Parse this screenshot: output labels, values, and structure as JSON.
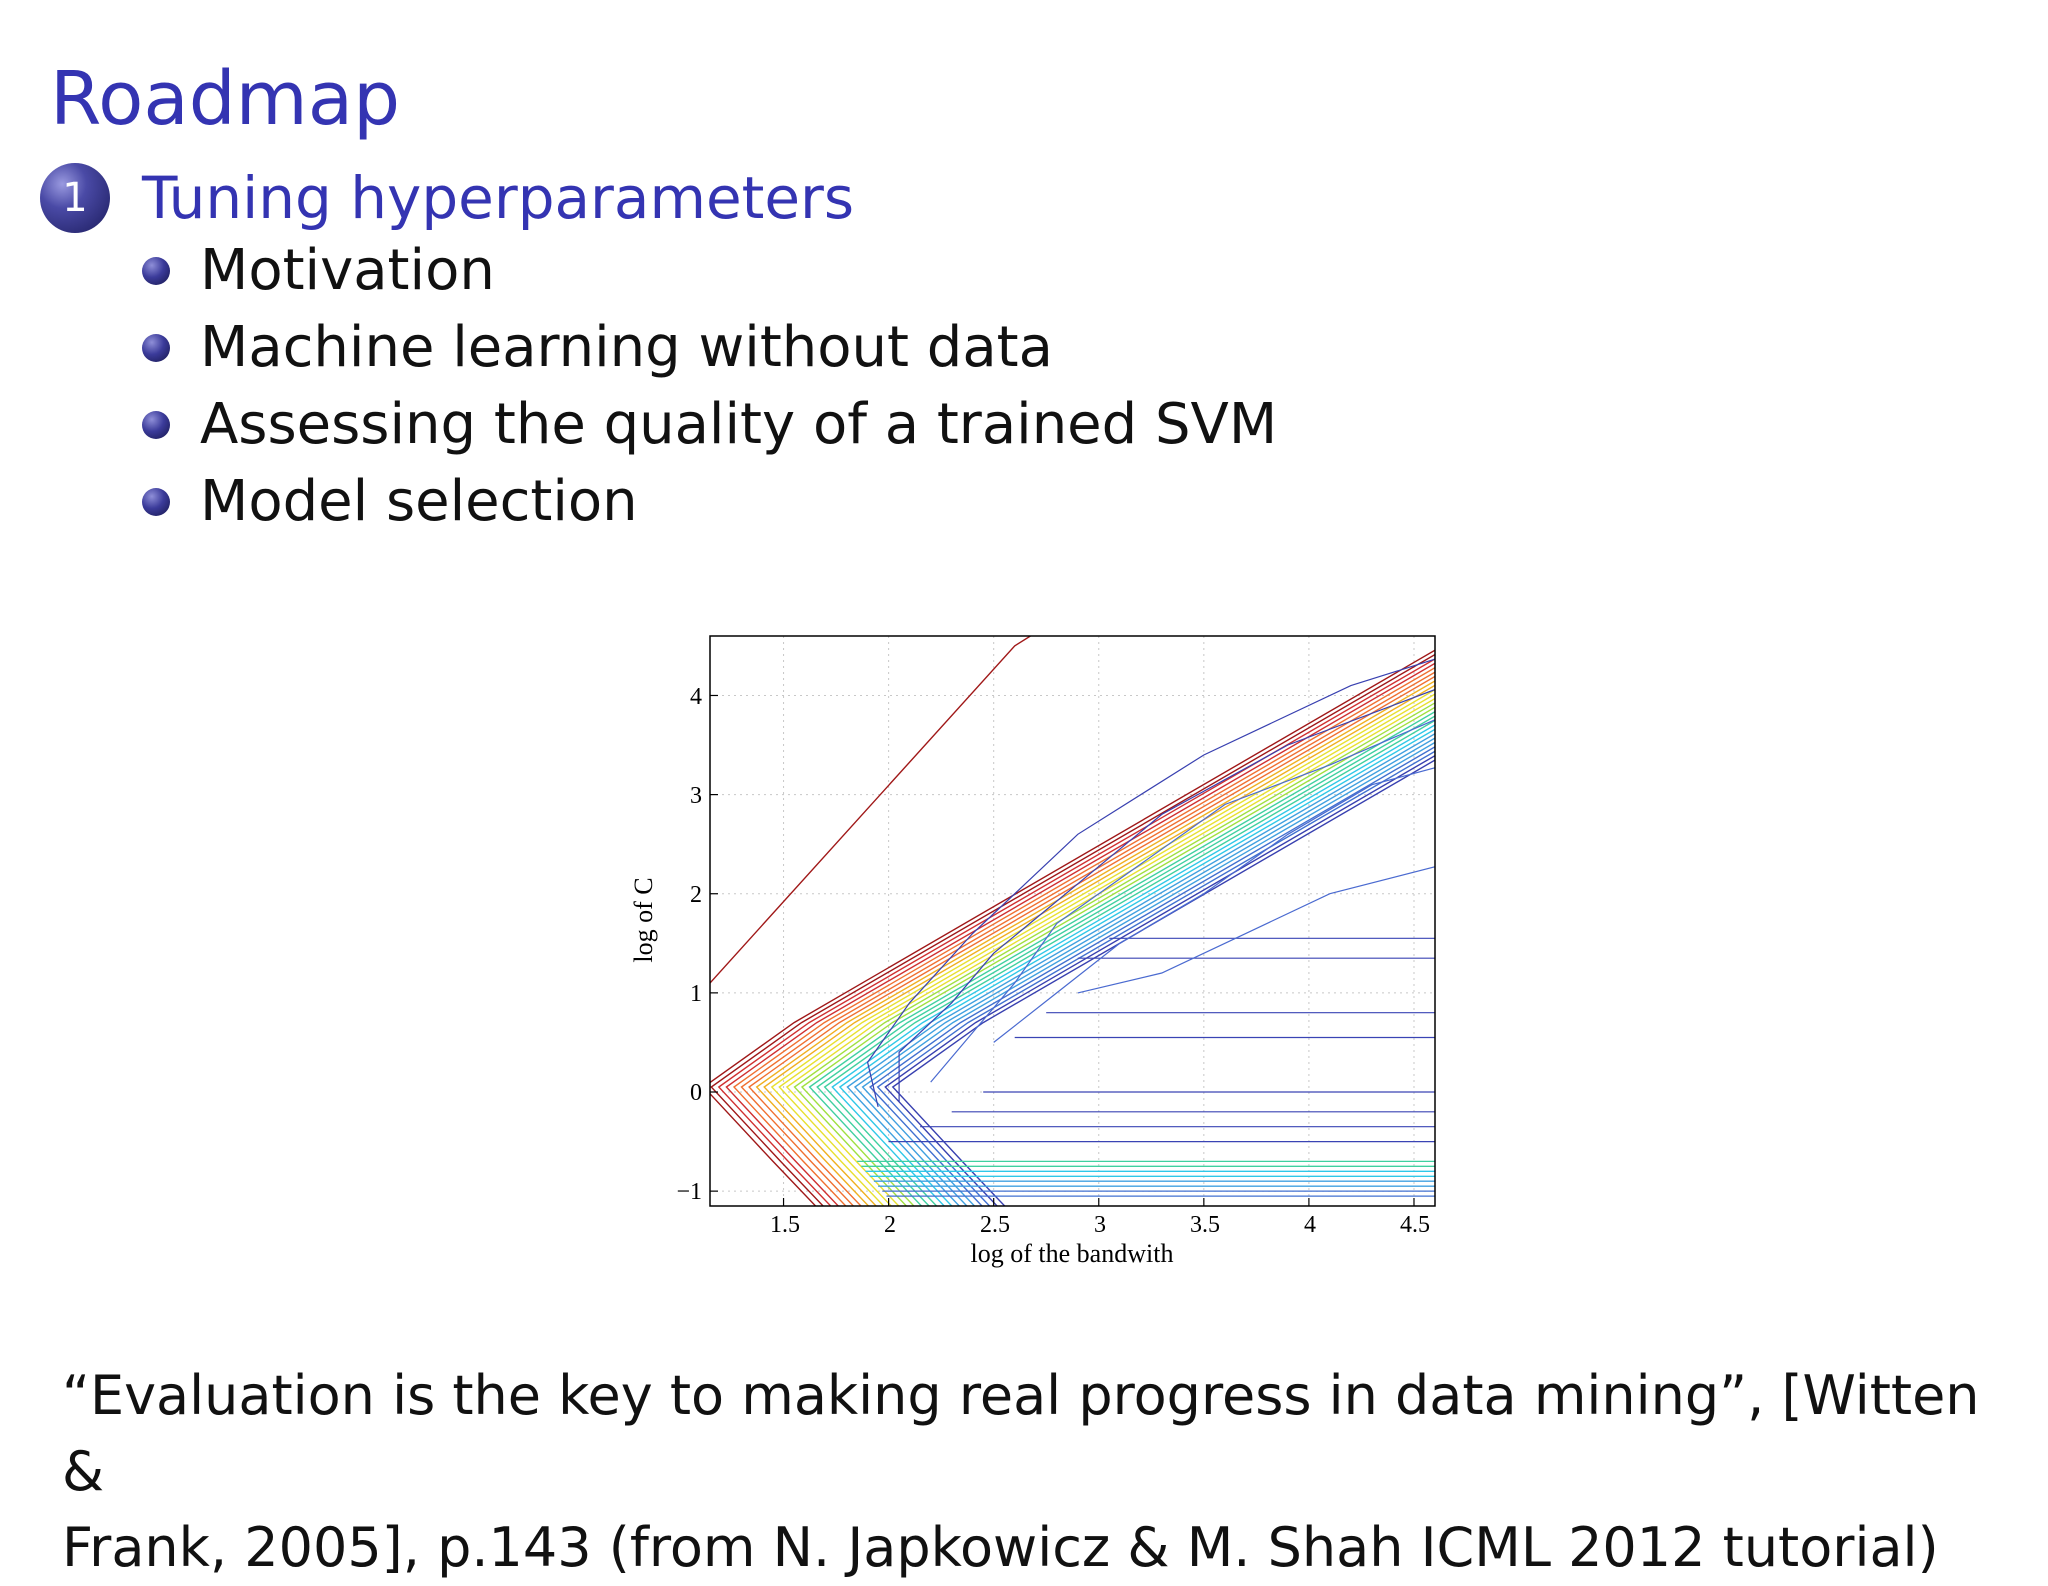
{
  "slide": {
    "title": "Roadmap",
    "section_number": "1",
    "section_title": "Tuning hyperparameters",
    "items": [
      "Motivation",
      "Machine learning without data",
      "Assessing the quality of a trained SVM",
      "Model selection"
    ],
    "quote_line1": "“Evaluation is the key to making real progress in data mining”, [Witten &",
    "quote_line2": "Frank, 2005], p.143 (from N. Japkowicz & M. Shah ICML 2012 tutorial)"
  },
  "chart_data": {
    "type": "contour",
    "xlabel": "log of the bandwith",
    "ylabel": "log of C",
    "xlim": [
      1.15,
      4.6
    ],
    "ylim": [
      -1.15,
      4.6
    ],
    "x_ticks": [
      "1.5",
      "2",
      "2.5",
      "3",
      "3.5",
      "4",
      "4.5"
    ],
    "y_ticks": [
      "4",
      "3",
      "2",
      "1",
      "0",
      "−1"
    ],
    "grid": true,
    "colors": [
      "#a01818",
      "#d03030",
      "#f07030",
      "#f0b020",
      "#e8e030",
      "#a0e040",
      "#40d0a0",
      "#30c8e8",
      "#40a0e0",
      "#4070d0",
      "#3840b0"
    ]
  }
}
